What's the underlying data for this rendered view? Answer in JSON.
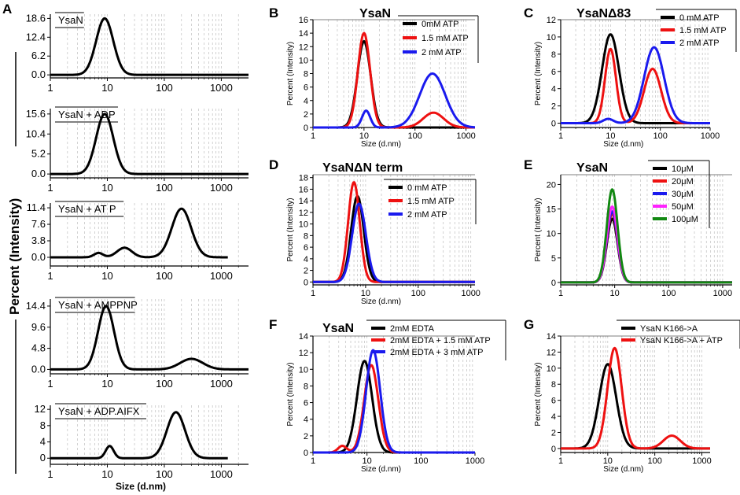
{
  "panel_labels": {
    "A": "A",
    "B": "B",
    "C": "C",
    "D": "D",
    "E": "E",
    "F": "F",
    "G": "G"
  },
  "shared_y_label": "Percent (Intensity)",
  "panel_a_x_label": "Size (d.nm)",
  "colors": {
    "black": "#000000",
    "red": "#ee1111",
    "blue": "#1a1aee",
    "magenta": "#ff22ff",
    "green": "#118811",
    "grid": "#bfbfbf"
  },
  "chart_data": [
    {
      "id": "A1",
      "type": "line",
      "title": "YsaN",
      "ticks": [
        0.0,
        6.2,
        12.4,
        18.6
      ],
      "tick_labels": [
        "0.0",
        "6.2",
        "12.4",
        "18.6"
      ],
      "xlim": [
        1,
        3000
      ],
      "ylim": [
        -1,
        20
      ],
      "x_ticks": [
        1,
        10,
        100,
        1000
      ],
      "x_tick_labels": [
        "1",
        "10",
        "100",
        "1000"
      ],
      "xlabel": "",
      "series": [
        {
          "name": "YsaN",
          "color": "black",
          "peaks": [
            [
              9,
              18.6,
              0.15
            ]
          ]
        }
      ]
    },
    {
      "id": "A2",
      "type": "line",
      "title": "YsaN + ADP",
      "ticks": [
        0.0,
        5.2,
        10.4,
        15.6
      ],
      "tick_labels": [
        "0.0",
        "5.2",
        "10.4",
        "15.6"
      ],
      "xlim": [
        1,
        3000
      ],
      "ylim": [
        -1,
        17
      ],
      "x_ticks": [
        1,
        10,
        100,
        1000
      ],
      "x_tick_labels": [
        "1",
        "10",
        "100",
        "1000"
      ],
      "xlabel": "",
      "series": [
        {
          "name": "YsaN + ADP",
          "color": "black",
          "peaks": [
            [
              9,
              15.6,
              0.15
            ]
          ]
        }
      ]
    },
    {
      "id": "A3",
      "type": "line",
      "title": "YsaN + AT P",
      "ticks": [
        0.0,
        3.8,
        7.6,
        11.4
      ],
      "tick_labels": [
        "0.0",
        "3.8",
        "7.6",
        "11.4"
      ],
      "xlim": [
        1,
        3000
      ],
      "ylim": [
        -2,
        12.5
      ],
      "x_ticks": [
        1,
        10,
        100,
        1000
      ],
      "x_tick_labels": [
        "1",
        "10",
        "100",
        "1000"
      ],
      "xlabel": "",
      "series": [
        {
          "name": "YsaN + ATP",
          "color": "black",
          "xmax": 1300,
          "peaks": [
            [
              7,
              1.0,
              0.08
            ],
            [
              20,
              2.2,
              0.13
            ],
            [
              200,
              11.2,
              0.17
            ]
          ]
        }
      ]
    },
    {
      "id": "A4",
      "type": "line",
      "title": "YsaN + AMPPNP",
      "ticks": [
        0.0,
        4.8,
        9.6,
        14.4
      ],
      "tick_labels": [
        "0.0",
        "4.8",
        "9.6",
        "14.4"
      ],
      "xlim": [
        1,
        3000
      ],
      "ylim": [
        -1,
        16
      ],
      "x_ticks": [
        1,
        10,
        100,
        1000
      ],
      "x_tick_labels": [
        "1",
        "10",
        "100",
        "1000"
      ],
      "xlabel": "",
      "series": [
        {
          "name": "YsaN + AMPPNP",
          "color": "black",
          "peaks": [
            [
              9.5,
              14.4,
              0.14
            ],
            [
              300,
              2.4,
              0.2
            ]
          ]
        }
      ]
    },
    {
      "id": "A5",
      "type": "line",
      "title": "YsaN + ADP.AIFX",
      "ticks": [
        0,
        4,
        8,
        12
      ],
      "tick_labels": [
        "0",
        "4",
        "8",
        "12"
      ],
      "xlim": [
        1,
        3000
      ],
      "ylim": [
        -1.5,
        13
      ],
      "x_ticks": [
        1,
        10,
        100,
        1000
      ],
      "x_tick_labels": [
        "1",
        "10",
        "100",
        "1000"
      ],
      "xlabel": "Size (d.nm)",
      "series": [
        {
          "name": "YsaN + ADP.AlFx",
          "color": "black",
          "xmax": 1300,
          "peaks": [
            [
              11,
              3.0,
              0.07
            ],
            [
              160,
              11.3,
              0.16
            ]
          ]
        }
      ]
    },
    {
      "id": "B",
      "type": "line",
      "title": "YsaN",
      "ylabel": "Percent (Intensity)",
      "xlabel": "Size (d.nm)",
      "xlim": [
        1,
        1500
      ],
      "ylim": [
        0,
        16
      ],
      "y_ticks": [
        0,
        2,
        4,
        6,
        8,
        10,
        12,
        14,
        16
      ],
      "y_tick_labels": [
        "0",
        "2",
        "4",
        "6",
        "8",
        "10",
        "12",
        "14",
        "16"
      ],
      "x_ticks": [
        1,
        10,
        100,
        1000
      ],
      "x_tick_labels": [
        "1",
        "10",
        "100",
        "1000"
      ],
      "series": [
        {
          "name": "0mM ATP",
          "color": "black",
          "peaks": [
            [
              10,
              12.8,
              0.13
            ]
          ]
        },
        {
          "name": "1.5 mM ATP",
          "color": "red",
          "peaks": [
            [
              10,
              14.0,
              0.12
            ],
            [
              230,
              2.2,
              0.2
            ]
          ]
        },
        {
          "name": "2 mM ATP",
          "color": "blue",
          "peaks": [
            [
              11,
              2.5,
              0.08
            ],
            [
              220,
              8.0,
              0.25
            ]
          ]
        }
      ]
    },
    {
      "id": "C",
      "type": "line",
      "title": "YsaNΔ83",
      "ylabel": "Percent (Intensity)",
      "xlabel": "Size (d.nm)",
      "xlim": [
        1,
        1000
      ],
      "ylim": [
        -0.5,
        12
      ],
      "y_ticks": [
        0,
        2,
        4,
        6,
        8,
        10,
        12
      ],
      "y_tick_labels": [
        "0",
        "2",
        "4",
        "6",
        "8",
        "10",
        "12"
      ],
      "x_ticks": [
        1,
        10,
        100,
        1000
      ],
      "x_tick_labels": [
        "1",
        "10",
        "100",
        "1000"
      ],
      "series": [
        {
          "name": "0 mM ATP",
          "color": "black",
          "peaks": [
            [
              10,
              10.3,
              0.17
            ]
          ]
        },
        {
          "name": "1.5 mM ATP",
          "color": "red",
          "peaks": [
            [
              10,
              8.6,
              0.11
            ],
            [
              70,
              6.3,
              0.17
            ]
          ]
        },
        {
          "name": "2 mM ATP",
          "color": "blue",
          "peaks": [
            [
              9,
              0.5,
              0.1
            ],
            [
              75,
              8.8,
              0.2
            ]
          ]
        }
      ]
    },
    {
      "id": "D",
      "type": "line",
      "title": "YsaNΔN term",
      "ylabel": "Percent (Intensity)",
      "xlabel": "Size (d.nm)",
      "xlim": [
        1,
        1200
      ],
      "ylim": [
        -0.5,
        18.5
      ],
      "y_ticks": [
        0,
        2,
        4,
        6,
        8,
        10,
        12,
        14,
        16,
        18
      ],
      "y_tick_labels": [
        "0",
        "2",
        "4",
        "6",
        "8",
        "10",
        "12",
        "14",
        "16",
        "18"
      ],
      "x_ticks": [
        1,
        10,
        100,
        1000
      ],
      "x_tick_labels": [
        "1",
        "10",
        "100",
        "1000"
      ],
      "series": [
        {
          "name": "0 mM ATP",
          "color": "black",
          "peaks": [
            [
              7,
              14.8,
              0.12
            ]
          ]
        },
        {
          "name": "1.5 mM ATP",
          "color": "red",
          "peaks": [
            [
              6,
              17.2,
              0.11
            ]
          ]
        },
        {
          "name": "2 mM ATP",
          "color": "blue",
          "peaks": [
            [
              7.5,
              13.5,
              0.13
            ]
          ]
        }
      ]
    },
    {
      "id": "E",
      "type": "line",
      "title": "YsaN",
      "ylabel": "Percent (Intensity)",
      "xlabel": "",
      "xlim": [
        1,
        1500
      ],
      "ylim": [
        -0.5,
        22
      ],
      "y_ticks": [
        0,
        5,
        10,
        15,
        20
      ],
      "y_tick_labels": [
        "0",
        "5",
        "10",
        "15",
        "20"
      ],
      "x_ticks": [
        1,
        10,
        100,
        1000
      ],
      "x_tick_labels": [
        "1",
        "10",
        "100",
        "1000"
      ],
      "series": [
        {
          "name": "10μM",
          "color": "black",
          "peaks": [
            [
              9,
              13.0,
              0.1
            ]
          ]
        },
        {
          "name": "20μM",
          "color": "red",
          "peaks": [
            [
              9,
              14.0,
              0.1
            ]
          ]
        },
        {
          "name": "30μM",
          "color": "blue",
          "peaks": [
            [
              9,
              14.5,
              0.1
            ]
          ]
        },
        {
          "name": "50μM",
          "color": "magenta",
          "peaks": [
            [
              9,
              15.5,
              0.1
            ]
          ]
        },
        {
          "name": "100μM",
          "color": "green",
          "peaks": [
            [
              9,
              19.0,
              0.1
            ]
          ]
        }
      ]
    },
    {
      "id": "F",
      "type": "line",
      "title": "YsaN",
      "ylabel": "Percent (Intensity)",
      "xlabel": "Size (d.nm)",
      "xlim": [
        1,
        1000
      ],
      "ylim": [
        0,
        14
      ],
      "y_ticks": [
        0,
        2,
        4,
        6,
        8,
        10,
        12,
        14
      ],
      "y_tick_labels": [
        "0",
        "2",
        "4",
        "6",
        "8",
        "10",
        "12",
        "14"
      ],
      "x_ticks": [
        1,
        10,
        100,
        1000
      ],
      "x_tick_labels": [
        "1",
        "10",
        "100",
        "1000"
      ],
      "series": [
        {
          "name": "2mM EDTA",
          "color": "black",
          "peaks": [
            [
              9,
              11.0,
              0.14
            ]
          ]
        },
        {
          "name": "2mM EDTA + 1.5 mM ATP",
          "color": "red",
          "peaks": [
            [
              3.5,
              0.8,
              0.08
            ],
            [
              12,
              10.5,
              0.13
            ]
          ]
        },
        {
          "name": "2mM EDTA + 3 mM ATP",
          "color": "blue",
          "peaks": [
            [
              13,
              12.3,
              0.13
            ]
          ]
        }
      ]
    },
    {
      "id": "G",
      "type": "line",
      "title": "",
      "ylabel": "Percent (Intensity)",
      "xlabel": "Size (d.nm)",
      "xlim": [
        1,
        1500
      ],
      "ylim": [
        -0.5,
        14
      ],
      "y_ticks": [
        0,
        2,
        4,
        6,
        8,
        10,
        12,
        14
      ],
      "y_tick_labels": [
        "0",
        "2",
        "4",
        "6",
        "8",
        "10",
        "12",
        "14"
      ],
      "x_ticks": [
        1,
        10,
        100,
        1000
      ],
      "x_tick_labels": [
        "1",
        "10",
        "100",
        "1000"
      ],
      "series": [
        {
          "name": "YsaN K166->A",
          "color": "black",
          "peaks": [
            [
              10,
              10.5,
              0.18
            ]
          ]
        },
        {
          "name": "YsaN K166->A + ATP",
          "color": "red",
          "peaks": [
            [
              14,
              12.5,
              0.15
            ],
            [
              230,
              1.6,
              0.18
            ]
          ]
        }
      ]
    }
  ]
}
